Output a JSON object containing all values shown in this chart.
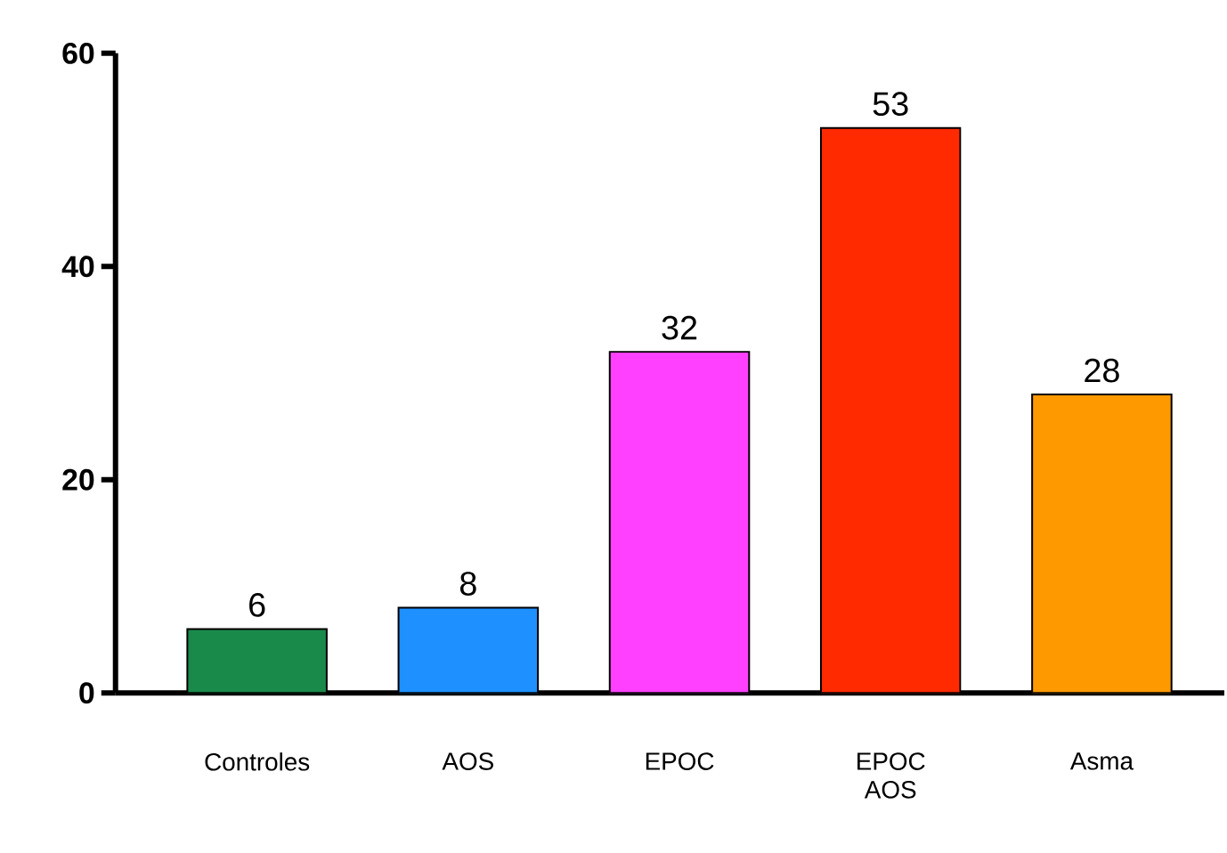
{
  "chart_data": {
    "type": "bar",
    "categories": [
      "Controles",
      "AOS",
      "EPOC",
      "EPOC AOS",
      "Asma"
    ],
    "values": [
      6,
      8,
      32,
      53,
      28
    ],
    "colors": [
      "#1a8a4a",
      "#1e90ff",
      "#ff40ff",
      "#ff2a00",
      "#ff9900"
    ],
    "ylim": [
      0,
      60
    ],
    "yticks": [
      0,
      20,
      40,
      60
    ],
    "data_labels": true
  }
}
